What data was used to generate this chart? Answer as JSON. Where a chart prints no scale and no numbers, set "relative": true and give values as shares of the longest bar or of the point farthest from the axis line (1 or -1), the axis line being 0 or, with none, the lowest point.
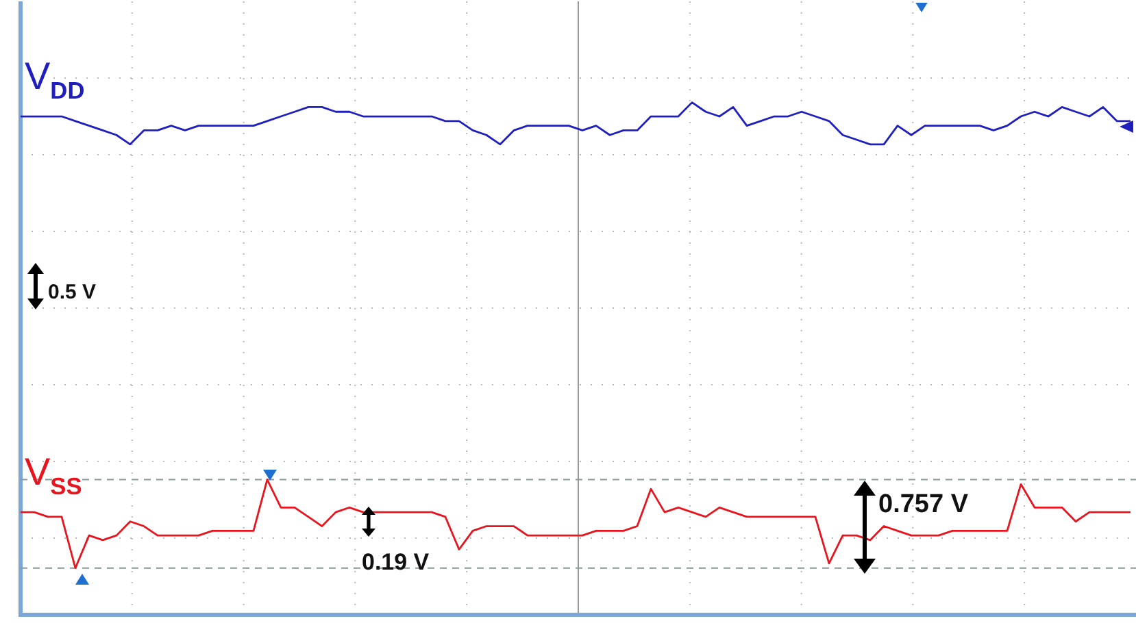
{
  "chart_data": {
    "type": "line",
    "relative": true,
    "grid": true,
    "legend": false,
    "marker": "none",
    "line_style": "solid",
    "categories": [
      null,
      null,
      null,
      null,
      null,
      null,
      null,
      null,
      null,
      null,
      null,
      null,
      null,
      null,
      null,
      null,
      null,
      null,
      null,
      null,
      null,
      null,
      null,
      null,
      null,
      null,
      null,
      null,
      null,
      null,
      null,
      null,
      null,
      null,
      null,
      null,
      null,
      null,
      null,
      null,
      null,
      null,
      null,
      null,
      null,
      null,
      null,
      null,
      null,
      null,
      null,
      null,
      null,
      null,
      null,
      null,
      null,
      null,
      null,
      null,
      null,
      null,
      null,
      null,
      null,
      null,
      null,
      null,
      null,
      null,
      null,
      null,
      null,
      null,
      null,
      null,
      null,
      null,
      null,
      null,
      null,
      null
    ],
    "series": [
      {
        "name": "V$_{DD}$",
        "color": "#1f1fbf",
        "values": [
          0.97,
          0.97,
          0.97,
          0.97,
          0.96,
          0.95,
          0.94,
          0.93,
          0.91,
          0.94,
          0.94,
          0.95,
          0.94,
          0.95,
          0.95,
          0.95,
          0.95,
          0.95,
          0.96,
          0.97,
          0.98,
          0.99,
          0.99,
          0.98,
          0.98,
          0.97,
          0.97,
          0.97,
          0.97,
          0.97,
          0.97,
          0.96,
          0.96,
          0.94,
          0.93,
          0.91,
          0.94,
          0.95,
          0.95,
          0.95,
          0.95,
          0.94,
          0.95,
          0.93,
          0.94,
          0.94,
          0.97,
          0.97,
          0.97,
          1,
          0.98,
          0.97,
          0.99,
          0.95,
          0.96,
          0.97,
          0.97,
          0.98,
          0.97,
          0.96,
          0.93,
          0.92,
          0.91,
          0.91,
          0.95,
          0.93,
          0.95,
          0.95,
          0.95,
          0.95,
          0.95,
          0.94,
          0.95,
          0.97,
          0.98,
          0.97,
          0.99,
          0.98,
          0.97,
          0.99,
          0.96,
          0.96
        ]
      },
      {
        "name": "V$_{SS}$",
        "color": "#e8141e",
        "values": [
          0.12,
          0.12,
          0.11,
          0.11,
          0,
          0.07,
          0.06,
          0.07,
          0.1,
          0.09,
          0.07,
          0.07,
          0.07,
          0.07,
          0.08,
          0.08,
          0.08,
          0.08,
          0.19,
          0.13,
          0.13,
          0.11,
          0.09,
          0.12,
          0.13,
          0.12,
          0.12,
          0.12,
          0.12,
          0.12,
          0.12,
          0.11,
          0.04,
          0.08,
          0.09,
          0.09,
          0.09,
          0.07,
          0.07,
          0.07,
          0.07,
          0.07,
          0.08,
          0.08,
          0.08,
          0.09,
          0.17,
          0.12,
          0.13,
          0.12,
          0.11,
          0.13,
          0.12,
          0.11,
          0.11,
          0.11,
          0.11,
          0.11,
          0.11,
          0.01,
          0.07,
          0.07,
          0.06,
          0.09,
          0.08,
          0.07,
          0.07,
          0.07,
          0.08,
          0.08,
          0.08,
          0.08,
          0.08,
          0.18,
          0.13,
          0.13,
          0.13,
          0.1,
          0.12,
          0.12,
          0.12,
          0.12
        ]
      }
    ],
    "ref_lines": [
      {
        "axis": "y",
        "value": 0.19,
        "color": "#8a9a9a",
        "line_style": "dashed"
      },
      {
        "axis": "y",
        "value": 0,
        "color": "#8a9a9a",
        "line_style": "dashed"
      }
    ],
    "annotations": [
      "0.5 V",
      "0.19 V",
      "0.757 V"
    ]
  }
}
